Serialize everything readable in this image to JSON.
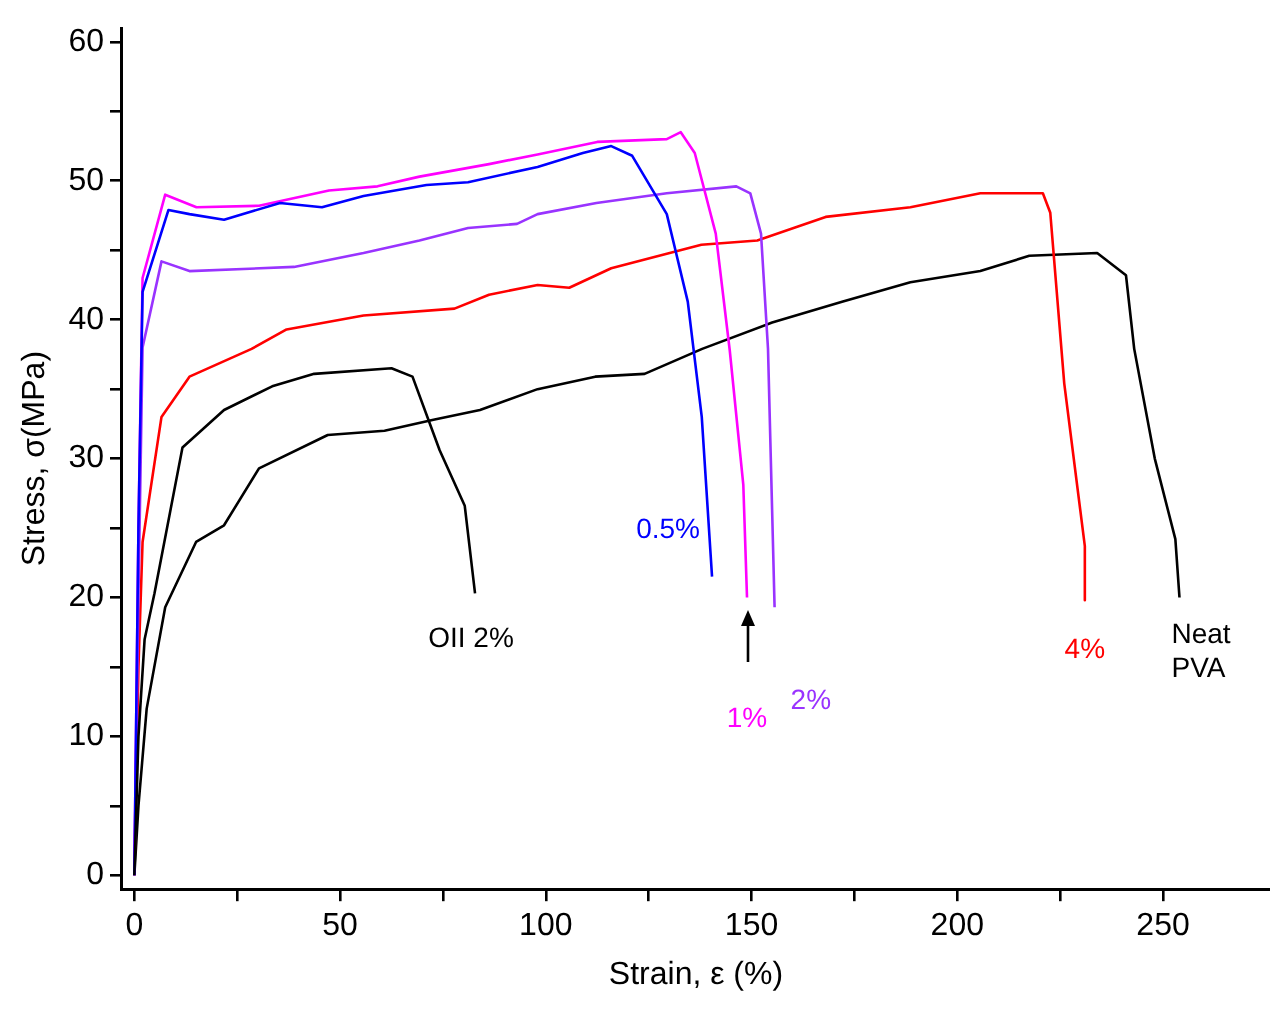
{
  "chart_data": {
    "type": "line",
    "xlabel": "Strain, ε (%)",
    "ylabel": "Stress, σ(MPa)",
    "xlim": [
      -3,
      276
    ],
    "ylim": [
      -1,
      61
    ],
    "xticks": [
      0,
      {
        "value": 25,
        "label": null
      },
      50,
      {
        "value": 75,
        "label": null
      },
      100,
      {
        "value": 125,
        "label": null
      },
      150,
      {
        "value": 175,
        "label": null
      },
      200,
      {
        "value": 225,
        "label": null
      },
      250
    ],
    "yticks": [
      0,
      {
        "value": 5,
        "label": null
      },
      10,
      {
        "value": 15,
        "label": null
      },
      20,
      {
        "value": 25,
        "label": null
      },
      30,
      {
        "value": 35,
        "label": null
      },
      40,
      {
        "value": 45,
        "label": null
      },
      50,
      {
        "value": 55,
        "label": null
      },
      60
    ],
    "grid": false,
    "legend": false,
    "marker": "none",
    "line_style": "solid",
    "series": [
      {
        "name": "OII 2%",
        "color": "#000000",
        "x": [
          0,
          1,
          2.5,
          4.9,
          11.7,
          21.8,
          33.5,
          43.7,
          62.5,
          67.6,
          74.2,
          80.3,
          82.8
        ],
        "values": [
          0,
          10,
          17,
          20.3,
          30.8,
          33.5,
          35.2,
          36.1,
          36.5,
          35.9,
          30.6,
          26.6,
          20.3
        ]
      },
      {
        "name": "0.5%",
        "color": "#0000ff",
        "x": [
          0,
          1,
          2,
          8.3,
          13.4,
          21.8,
          35.4,
          45.6,
          55.7,
          71,
          81.1,
          98,
          109,
          115.9,
          121,
          129.4,
          134.5,
          137.9,
          140.4
        ],
        "values": [
          0,
          25,
          42,
          47.9,
          47.6,
          47.2,
          48.4,
          48.1,
          48.9,
          49.7,
          49.9,
          51,
          52,
          52.5,
          51.8,
          47.6,
          41.3,
          33,
          21.5
        ]
      },
      {
        "name": "1%",
        "color": "#ff00ff",
        "x": [
          0,
          1,
          2,
          7.5,
          15.1,
          30.3,
          47.3,
          59.1,
          69.3,
          86.2,
          98,
          112.5,
          129.4,
          132.8,
          136.2,
          141.3,
          144.7,
          148,
          148.9
        ],
        "values": [
          0,
          25,
          43,
          49,
          48.1,
          48.2,
          49.3,
          49.6,
          50.3,
          51.2,
          51.9,
          52.8,
          53,
          53.5,
          52,
          46.2,
          37.8,
          28.1,
          20
        ]
      },
      {
        "name": "2%",
        "color": "#9933ff",
        "x": [
          0,
          1,
          2,
          6.6,
          13.4,
          38.8,
          55.7,
          69.3,
          81.1,
          93,
          98,
          112.3,
          129.4,
          146.3,
          149.7,
          152.3,
          154,
          155.6
        ],
        "values": [
          0,
          20,
          38,
          44.2,
          43.5,
          43.8,
          44.8,
          45.7,
          46.6,
          46.9,
          47.6,
          48.4,
          49.1,
          49.6,
          49.1,
          46.2,
          37.9,
          19.3
        ]
      },
      {
        "name": "4%",
        "color": "#ff0000",
        "x": [
          0,
          1,
          2,
          6.6,
          13.4,
          28.5,
          37,
          55.7,
          77.8,
          86.2,
          98,
          105.7,
          115.9,
          137.8,
          151.4,
          168,
          188.6,
          205.6,
          214,
          220.8,
          222.6,
          226,
          231,
          231
        ],
        "values": [
          0,
          15,
          24,
          33,
          35.9,
          37.9,
          39.3,
          40.3,
          40.8,
          41.8,
          42.5,
          42.3,
          43.7,
          45.4,
          45.7,
          47.4,
          48.1,
          49.1,
          49.1,
          49.1,
          47.7,
          35.4,
          23.7,
          19.8
        ]
      },
      {
        "name": "Neat PVA",
        "color": "#000000",
        "x": [
          0,
          1,
          3,
          7.5,
          15,
          21.8,
          30.3,
          47,
          60.8,
          72.7,
          84,
          98,
          112,
          124,
          138,
          155,
          172,
          188.6,
          205.6,
          217.5,
          234,
          241,
          243,
          248,
          253,
          254
        ],
        "values": [
          0,
          5,
          12,
          19.3,
          24,
          25.2,
          29.3,
          31.7,
          32,
          32.8,
          33.5,
          35,
          35.9,
          36.1,
          37.9,
          39.8,
          41.3,
          42.7,
          43.5,
          44.6,
          44.8,
          43.2,
          37.9,
          30,
          24.2,
          20
        ]
      }
    ]
  }
}
